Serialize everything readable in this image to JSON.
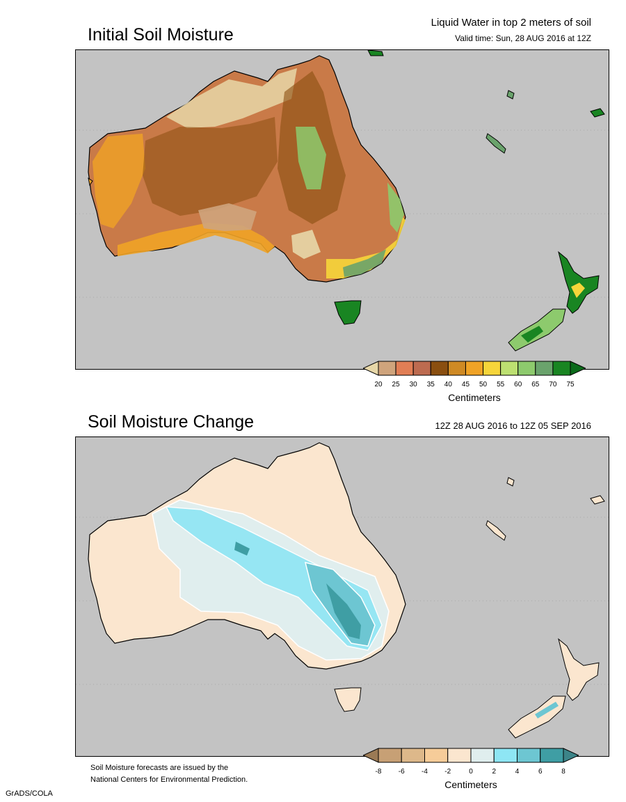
{
  "header": {
    "main_title": "Liquid Water in top 2 meters of soil",
    "valid_time": "Valid time: Sun, 28 AUG 2016 at 12Z"
  },
  "panel1": {
    "title": "Initial Soil Moisture",
    "colorbar": {
      "label": "Centimeters",
      "ticks": [
        "20",
        "25",
        "30",
        "35",
        "40",
        "45",
        "50",
        "55",
        "60",
        "65",
        "70",
        "75"
      ],
      "colors": [
        "#e7d7a8",
        "#cfa47c",
        "#e17e55",
        "#bd6b50",
        "#8a4f10",
        "#cf8a24",
        "#f0a326",
        "#f6d53a",
        "#bde071",
        "#8dca6d",
        "#6aa36c",
        "#198522",
        "#0a6a1a"
      ]
    }
  },
  "panel2": {
    "title": "Soil Moisture Change",
    "period": "12Z 28 AUG 2016 to 12Z 05 SEP 2016",
    "colorbar": {
      "label": "Centimeters",
      "ticks": [
        "-8",
        "-6",
        "-4",
        "-2",
        "0",
        "2",
        "4",
        "6",
        "8"
      ],
      "colors": [
        "#9b7a55",
        "#c7a075",
        "#ddb88a",
        "#f6cc99",
        "#fbe6cf",
        "#e0eeee",
        "#8ee6f4",
        "#6dc6d2",
        "#3f9ea4",
        "#3c8488"
      ]
    }
  },
  "footer": {
    "note_line1": "Soil Moisture forecasts are issued by the",
    "note_line2": "National Centers for Environmental Prediction.",
    "credit": "GrADS/COLA"
  },
  "colors": {
    "ocean": "#c3c3c3",
    "coast": "#000000"
  }
}
